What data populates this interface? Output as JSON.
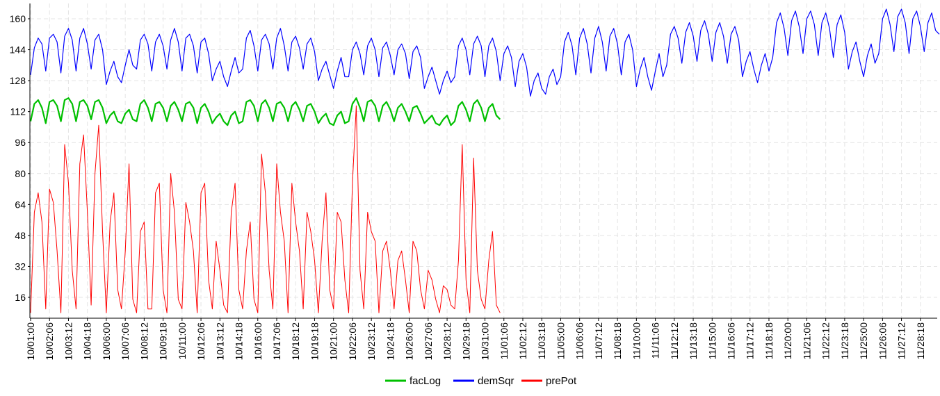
{
  "chart_data": {
    "type": "line",
    "title": "",
    "xlabel": "",
    "ylabel": "",
    "x_start": "10/01 00:00",
    "sample_interval_hours": 6,
    "ylim": [
      5,
      168
    ],
    "yticks": [
      16,
      32,
      48,
      64,
      80,
      96,
      112,
      128,
      144,
      160
    ],
    "xtick_interval_hours": 30,
    "xticks": [
      "10/01:00",
      "10/02:06",
      "10/03:12",
      "10/04:18",
      "10/06:00",
      "10/07:06",
      "10/08:12",
      "10/09:18",
      "10/11:00",
      "10/12:06",
      "10/13:12",
      "10/14:18",
      "10/16:00",
      "10/17:06",
      "10/18:12",
      "10/19:18",
      "10/21:00",
      "10/22:06",
      "10/23:12",
      "10/24:18",
      "10/26:00",
      "10/27:06",
      "10/28:12",
      "10/29:18",
      "10/31:00",
      "11/01:06",
      "11/02:12",
      "11/03:18",
      "11/05:00",
      "11/06:06",
      "11/07:12",
      "11/08:18",
      "11/10:00",
      "11/11:06",
      "11/12:12",
      "11/13:18",
      "11/15:00",
      "11/16:06",
      "11/17:12",
      "11/18:18",
      "11/20:00",
      "11/21:06",
      "11/22:12",
      "11/23:18",
      "11/25:00",
      "11/26:06",
      "11/27:12",
      "11/28:18"
    ],
    "grid": true,
    "legend_position": "bottom-center",
    "series": [
      {
        "name": "facLog",
        "color": "#00c000",
        "width": 2.2,
        "values": [
          107,
          116,
          118,
          114,
          106,
          117,
          118,
          115,
          107,
          118,
          119,
          116,
          107,
          117,
          118,
          115,
          108,
          117,
          118,
          114,
          106,
          110,
          112,
          107,
          106,
          111,
          113,
          108,
          107,
          116,
          118,
          114,
          107,
          116,
          117,
          114,
          107,
          115,
          117,
          113,
          107,
          116,
          117,
          114,
          106,
          114,
          116,
          112,
          106,
          109,
          111,
          107,
          105,
          110,
          112,
          106,
          107,
          117,
          118,
          115,
          107,
          116,
          118,
          114,
          107,
          116,
          117,
          114,
          107,
          115,
          117,
          113,
          107,
          115,
          116,
          112,
          106,
          109,
          111,
          106,
          105,
          110,
          112,
          106,
          107,
          116,
          119,
          114,
          107,
          117,
          118,
          115,
          107,
          115,
          117,
          113,
          107,
          114,
          116,
          112,
          107,
          114,
          115,
          111,
          106,
          108,
          110,
          106,
          105,
          108,
          110,
          105,
          107,
          115,
          117,
          113,
          107,
          116,
          118,
          114,
          107,
          114,
          116,
          110,
          108
        ]
      },
      {
        "name": "demSqr",
        "color": "#0000ff",
        "width": 1.2,
        "values": [
          131,
          145,
          150,
          147,
          133,
          150,
          152,
          148,
          132,
          151,
          155,
          149,
          133,
          150,
          155,
          147,
          134,
          149,
          152,
          144,
          126,
          133,
          138,
          130,
          127,
          136,
          144,
          136,
          134,
          149,
          152,
          147,
          133,
          148,
          152,
          146,
          134,
          149,
          155,
          148,
          133,
          150,
          152,
          146,
          132,
          148,
          150,
          142,
          128,
          134,
          138,
          130,
          125,
          133,
          140,
          132,
          134,
          150,
          154,
          146,
          133,
          149,
          152,
          147,
          134,
          150,
          155,
          146,
          133,
          148,
          151,
          145,
          134,
          147,
          150,
          143,
          128,
          134,
          138,
          131,
          124,
          133,
          140,
          130,
          130,
          144,
          148,
          142,
          131,
          146,
          150,
          144,
          130,
          145,
          148,
          141,
          131,
          144,
          147,
          142,
          129,
          143,
          146,
          140,
          124,
          130,
          135,
          128,
          121,
          128,
          133,
          127,
          130,
          146,
          150,
          144,
          131,
          147,
          151,
          146,
          130,
          146,
          150,
          143,
          128,
          142,
          146,
          140,
          125,
          138,
          142,
          135,
          120,
          128,
          132,
          124,
          121,
          130,
          134,
          126,
          130,
          148,
          153,
          146,
          131,
          150,
          155,
          147,
          132,
          150,
          156,
          148,
          133,
          151,
          155,
          147,
          131,
          148,
          152,
          144,
          125,
          134,
          140,
          130,
          123,
          133,
          142,
          130,
          136,
          152,
          156,
          150,
          137,
          153,
          158,
          151,
          138,
          154,
          159,
          152,
          138,
          153,
          158,
          151,
          137,
          152,
          156,
          149,
          130,
          138,
          143,
          134,
          127,
          136,
          142,
          133,
          140,
          158,
          163,
          155,
          141,
          159,
          164,
          156,
          142,
          160,
          164,
          157,
          141,
          158,
          163,
          155,
          140,
          157,
          162,
          153,
          134,
          143,
          148,
          138,
          130,
          141,
          147,
          137,
          142,
          160,
          165,
          157,
          143,
          161,
          165,
          158,
          142,
          160,
          164,
          156,
          143,
          158,
          163,
          154,
          152
        ]
      },
      {
        "name": "prePot",
        "color": "#ff0000",
        "width": 1,
        "values": [
          8,
          60,
          70,
          55,
          10,
          72,
          65,
          40,
          8,
          95,
          75,
          30,
          10,
          85,
          100,
          60,
          12,
          80,
          105,
          50,
          8,
          55,
          70,
          20,
          10,
          40,
          85,
          15,
          8,
          50,
          55,
          10,
          10,
          70,
          75,
          20,
          8,
          80,
          60,
          15,
          10,
          65,
          55,
          40,
          8,
          70,
          75,
          25,
          10,
          45,
          30,
          12,
          8,
          60,
          75,
          20,
          10,
          40,
          55,
          15,
          8,
          90,
          70,
          30,
          10,
          85,
          60,
          45,
          8,
          75,
          55,
          40,
          10,
          60,
          50,
          35,
          8,
          45,
          70,
          20,
          10,
          60,
          55,
          25,
          8,
          75,
          115,
          30,
          10,
          60,
          50,
          45,
          8,
          40,
          45,
          30,
          10,
          35,
          40,
          25,
          8,
          45,
          40,
          20,
          10,
          30,
          25,
          15,
          8,
          22,
          20,
          12,
          10,
          35,
          95,
          25,
          8,
          88,
          30,
          15,
          10,
          35,
          50,
          12,
          8
        ]
      }
    ]
  }
}
